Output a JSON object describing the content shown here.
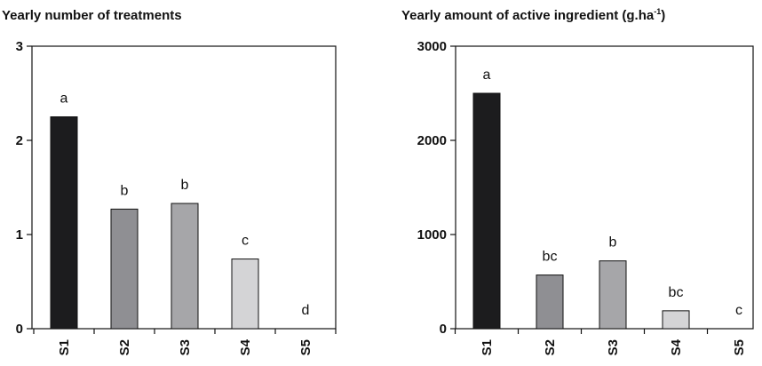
{
  "chart_data": [
    {
      "type": "bar",
      "title": "Yearly number of treatments",
      "categories": [
        "S1",
        "S2",
        "S3",
        "S4",
        "S5"
      ],
      "values": [
        2.25,
        1.27,
        1.33,
        0.74,
        0
      ],
      "significance_letters": [
        "a",
        "b",
        "b",
        "c",
        "d"
      ],
      "ylim": [
        0,
        3
      ],
      "yticks": [
        0,
        1,
        2,
        3
      ],
      "colors": [
        "#1c1c1e",
        "#8f8f93",
        "#a6a6a9",
        "#d4d4d6",
        "#ffffff"
      ],
      "grid": false
    },
    {
      "type": "bar",
      "title": "Yearly amount of active ingredient (g.ha",
      "title_superscript": "-1",
      "title_suffix": ")",
      "categories": [
        "S1",
        "S2",
        "S3",
        "S4",
        "S5"
      ],
      "values": [
        2500,
        570,
        720,
        190,
        0
      ],
      "significance_letters": [
        "a",
        "bc",
        "b",
        "bc",
        "c"
      ],
      "ylim": [
        0,
        3000
      ],
      "yticks": [
        0,
        1000,
        2000,
        3000
      ],
      "colors": [
        "#1c1c1e",
        "#8f8f93",
        "#a6a6a9",
        "#d4d4d6",
        "#ffffff"
      ],
      "grid": false
    }
  ]
}
